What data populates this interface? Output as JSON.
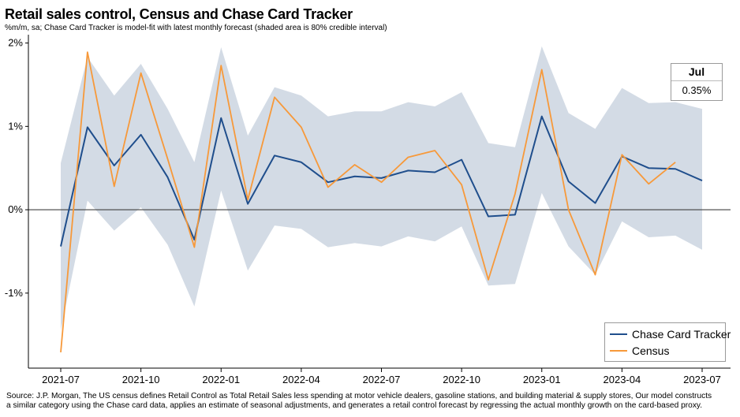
{
  "title": "Retail sales control, Census and Chase Card Tracker",
  "subtitle": "%m/m, sa; Chase Card Tracker is model-fit with latest monthly forecast (shaded area is 80% credible interval)",
  "source_lines": [
    "Source: J.P. Morgan, The US census defines Retail Control as Total Retail Sales less spending at motor vehicle dealers, gasoline stations, and building material & supply stores, Our model constructs",
    "a similar category using the Chase card data, applies an estimate of seasonal adjustments, and generates a retail control forecast by regressing the actual monthly growth on the card-based proxy."
  ],
  "callout": {
    "label": "Jul",
    "value": "0.35%"
  },
  "colors": {
    "chase": "#1f4e8c",
    "census": "#f7993a",
    "band": "#d3dbe5",
    "zero_line": "#404040",
    "axis": "#000000"
  },
  "chart_data": {
    "type": "line",
    "title": "Retail sales control, Census and Chase Card Tracker",
    "x": [
      "2021-07",
      "2021-08",
      "2021-09",
      "2021-10",
      "2021-11",
      "2021-12",
      "2022-01",
      "2022-02",
      "2022-03",
      "2022-04",
      "2022-05",
      "2022-06",
      "2022-07",
      "2022-08",
      "2022-09",
      "2022-10",
      "2022-11",
      "2022-12",
      "2023-01",
      "2023-02",
      "2023-03",
      "2023-04",
      "2023-05",
      "2023-06",
      "2023-07"
    ],
    "x_tick_labels": [
      "2021-07",
      "2021-10",
      "2022-01",
      "2022-04",
      "2022-07",
      "2022-10",
      "2023-01",
      "2023-04",
      "2023-07"
    ],
    "y_tick_labels": [
      "2%",
      "1%",
      "0%",
      "-1%"
    ],
    "y_ticks": [
      2,
      1,
      0,
      -1
    ],
    "ylim": [
      -1.9,
      2.1
    ],
    "ylabel": "",
    "xlabel": "",
    "grid": false,
    "legend_position": "bottom-right",
    "series": [
      {
        "name": "Chase Card Tracker",
        "values": [
          -0.44,
          0.99,
          0.53,
          0.9,
          0.39,
          -0.36,
          1.1,
          0.07,
          0.65,
          0.57,
          0.33,
          0.4,
          0.38,
          0.47,
          0.45,
          0.6,
          -0.08,
          -0.06,
          1.12,
          0.34,
          0.08,
          0.64,
          0.5,
          0.49,
          0.35
        ]
      },
      {
        "name": "Census",
        "values": [
          -1.71,
          1.89,
          0.28,
          1.64,
          0.61,
          -0.45,
          1.73,
          0.12,
          1.35,
          0.99,
          0.27,
          0.54,
          0.33,
          0.63,
          0.71,
          0.3,
          -0.84,
          0.19,
          1.68,
          0.0,
          -0.78,
          0.66,
          0.31,
          0.57,
          null
        ]
      }
    ],
    "band": {
      "name": "80% credible interval",
      "upper": [
        0.56,
        1.83,
        1.37,
        1.75,
        1.21,
        0.57,
        1.95,
        0.89,
        1.47,
        1.37,
        1.12,
        1.18,
        1.18,
        1.29,
        1.24,
        1.41,
        0.8,
        0.75,
        1.96,
        1.16,
        0.97,
        1.46,
        1.28,
        1.29,
        1.21
      ],
      "lower": [
        -1.45,
        0.11,
        -0.25,
        0.03,
        -0.42,
        -1.16,
        0.23,
        -0.73,
        -0.19,
        -0.23,
        -0.45,
        -0.4,
        -0.44,
        -0.32,
        -0.38,
        -0.2,
        -0.91,
        -0.89,
        0.2,
        -0.44,
        -0.78,
        -0.14,
        -0.33,
        -0.31,
        -0.48
      ]
    }
  }
}
